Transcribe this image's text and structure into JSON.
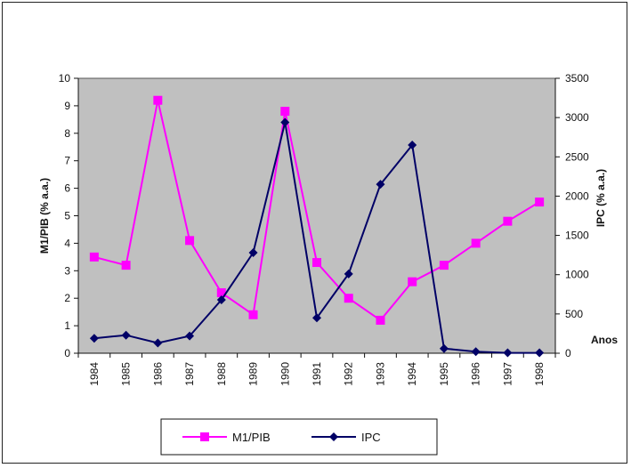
{
  "chart_data": {
    "type": "line",
    "categories": [
      "1984",
      "1985",
      "1986",
      "1987",
      "1988",
      "1989",
      "1990",
      "1991",
      "1992",
      "1993",
      "1994",
      "1995",
      "1996",
      "1997",
      "1998"
    ],
    "series": [
      {
        "name": "M1/PIB",
        "axis": "left",
        "color": "#ff00ff",
        "marker": "square",
        "values": [
          3.5,
          3.2,
          9.2,
          4.1,
          2.2,
          1.4,
          8.8,
          3.3,
          2.0,
          1.2,
          2.6,
          3.2,
          4.0,
          4.8,
          5.5
        ]
      },
      {
        "name": "IPC",
        "axis": "right",
        "color": "#000066",
        "marker": "diamond",
        "values": [
          190,
          230,
          130,
          220,
          680,
          1280,
          2940,
          450,
          1010,
          2150,
          2650,
          60,
          20,
          5,
          5
        ]
      }
    ],
    "ylabel_left": "M1/PIB (% a.a.)",
    "ylabel_right": "IPC (% a.a.)",
    "xlabel": "Anos",
    "ylim_left": [
      0,
      10
    ],
    "ylim_right": [
      0,
      3500
    ],
    "yticks_left": [
      "0",
      "1",
      "2",
      "3",
      "4",
      "5",
      "6",
      "7",
      "8",
      "9",
      "10"
    ],
    "yticks_right": [
      "0",
      "500",
      "1000",
      "1500",
      "2000",
      "2500",
      "3000",
      "3500"
    ],
    "plot_background": "#c0c0c0",
    "grid": false,
    "legend_position": "bottom"
  }
}
